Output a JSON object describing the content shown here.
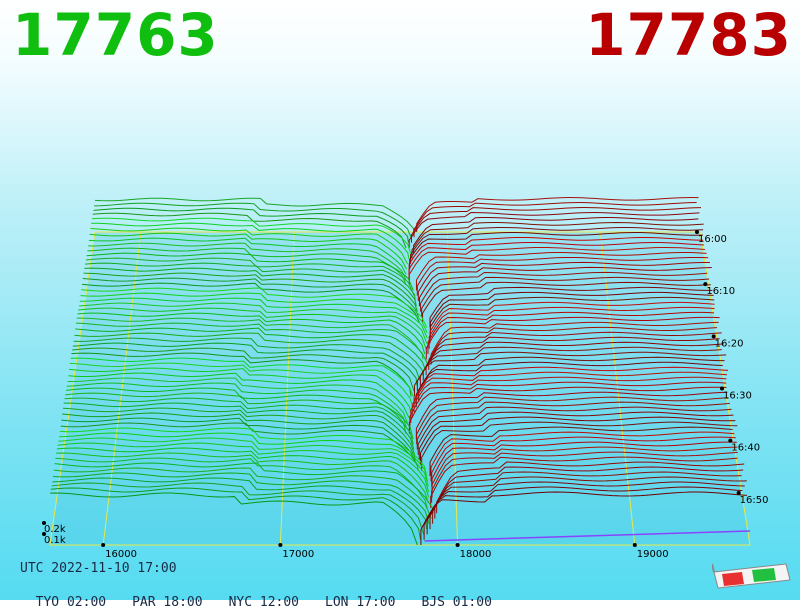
{
  "header": {
    "bid": "17763",
    "ask": "17783"
  },
  "colors": {
    "bid": "#0fbe0f",
    "ask": "#b80000",
    "grid": "#e8e84a",
    "baseline": "#8844ff"
  },
  "chart_data": {
    "type": "area",
    "x_ticks": [
      "16000",
      "17000",
      "18000",
      "19000"
    ],
    "x_tick_values": [
      16000,
      17000,
      18000,
      19000
    ],
    "xlim": [
      15700,
      19650
    ],
    "y_ticks": [
      "0.2k",
      "0.1k"
    ],
    "y_tick_values": [
      0.2,
      0.1
    ],
    "time_ticks": [
      "16:00",
      "16:10",
      "16:20",
      "16:30",
      "16:40",
      "16:50"
    ],
    "time_tick_minutes": [
      0,
      10,
      20,
      30,
      40,
      50
    ],
    "bid_price": 17763,
    "ask_price": 17783
  },
  "footer": {
    "utc": "UTC 2022-11-10 17:00",
    "zones": [
      "TYO 02:00",
      "PAR 18:00",
      "NYC 12:00",
      "LON 17:00",
      "BJS 01:00"
    ]
  }
}
